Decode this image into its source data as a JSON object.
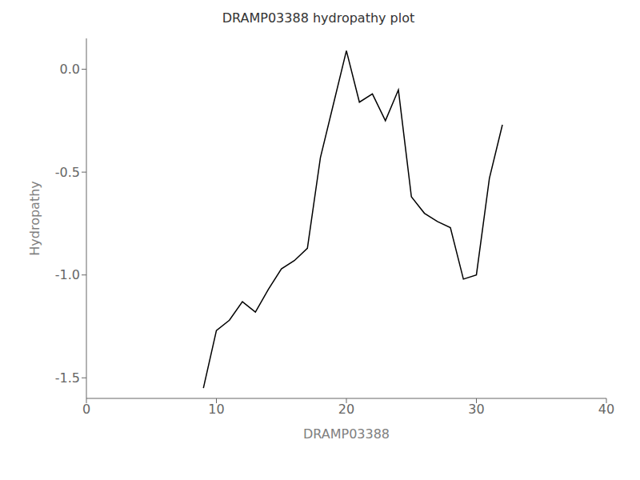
{
  "chart_data": {
    "type": "line",
    "title": "DRAMP03388 hydropathy plot",
    "xlabel": "DRAMP03388",
    "ylabel": "Hydropathy",
    "x": [
      9,
      10,
      11,
      12,
      13,
      14,
      15,
      16,
      17,
      18,
      19,
      20,
      21,
      22,
      23,
      24,
      25,
      26,
      27,
      28,
      29,
      30,
      31,
      32
    ],
    "values": [
      -1.55,
      -1.27,
      -1.22,
      -1.13,
      -1.18,
      -1.07,
      -0.97,
      -0.93,
      -0.87,
      -0.43,
      -0.17,
      0.09,
      -0.16,
      -0.12,
      -0.25,
      -0.1,
      -0.62,
      -0.7,
      -0.74,
      -0.77,
      -1.02,
      -1.0,
      -0.53,
      -0.27
    ],
    "color": "#000000",
    "xlim": [
      0,
      40
    ],
    "ylim": [
      -1.6,
      0.15
    ],
    "xticks": [
      0,
      10,
      20,
      30,
      40
    ],
    "yticks": [
      {
        "value": 0,
        "label": "0.0"
      },
      -0.5,
      {
        "value": -1,
        "label": "-1.0"
      },
      -1.5
    ],
    "grid": false
  }
}
